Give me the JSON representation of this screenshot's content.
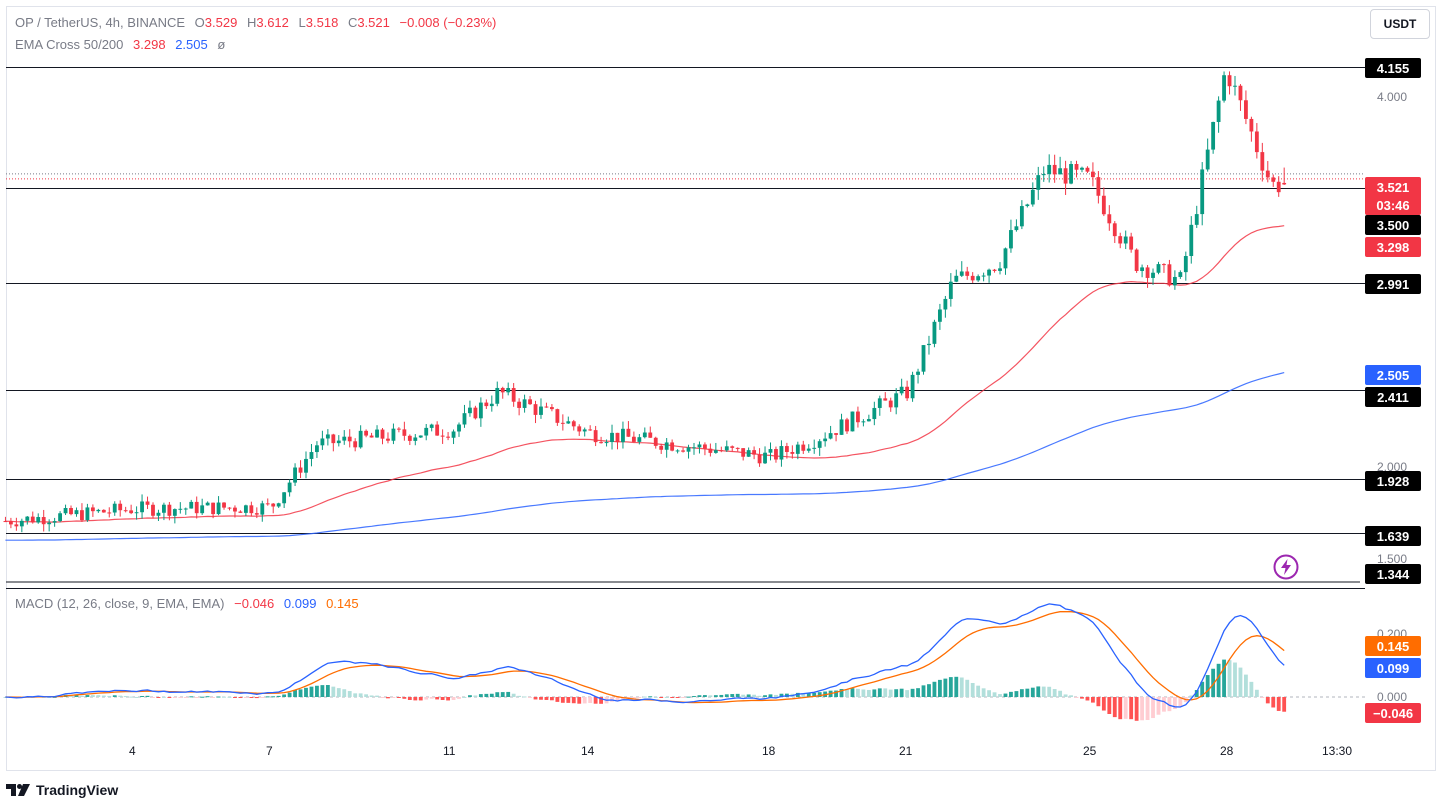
{
  "header": {
    "symbol": "OP / TetherUS, 4h, BINANCE",
    "o_label": "O",
    "o_value": "3.529",
    "h_label": "H",
    "h_value": "3.612",
    "l_label": "L",
    "l_value": "3.518",
    "c_label": "C",
    "c_value": "3.521",
    "change": "−0.008 (−0.23%)",
    "ema_label": "EMA Cross 50/200",
    "ema_fast": "3.298",
    "ema_slow": "2.505",
    "ema_icon": "ø"
  },
  "currency_button": "USDT",
  "macd": {
    "label": "MACD (12, 26, close, 9, EMA, EMA)",
    "hist": "−0.046",
    "macd": "0.099",
    "signal": "0.145"
  },
  "price_axis": {
    "ticks": [
      "4.000",
      "2.000",
      "1.500"
    ],
    "tags": [
      {
        "text": "4.155",
        "color": "#000000"
      },
      {
        "text": "3.521",
        "color": "#f23645"
      },
      {
        "text": "03:46",
        "color": "#f23645"
      },
      {
        "text": "3.500",
        "color": "#000000"
      },
      {
        "text": "3.298",
        "color": "#f23645"
      },
      {
        "text": "2.991",
        "color": "#000000"
      },
      {
        "text": "2.505",
        "color": "#2962ff"
      },
      {
        "text": "2.411",
        "color": "#000000"
      },
      {
        "text": "1.928",
        "color": "#000000"
      },
      {
        "text": "1.639",
        "color": "#000000"
      },
      {
        "text": "1.344",
        "color": "#000000"
      }
    ]
  },
  "macd_axis": {
    "ticks": [
      "0.200",
      "0.000"
    ],
    "tags": [
      {
        "text": "0.145",
        "color": "#ff6d00"
      },
      {
        "text": "0.099",
        "color": "#2962ff"
      },
      {
        "text": "−0.046",
        "color": "#f23645"
      }
    ]
  },
  "time_axis": [
    "4",
    "7",
    "11",
    "14",
    "18",
    "21",
    "25",
    "28",
    "13:30"
  ],
  "branding": "TradingView",
  "chart_data": {
    "type": "candlestick",
    "title": "OP / TetherUS, 4h, BINANCE",
    "horizontal_levels": [
      4.155,
      3.5,
      2.991,
      2.411,
      1.928,
      1.639,
      1.344
    ],
    "last_price": 3.521,
    "ylim": [
      1.344,
      4.35
    ],
    "keypoints_close": [
      {
        "x": "1",
        "close": 1.7
      },
      {
        "x": "4",
        "close": 1.77
      },
      {
        "x": "7",
        "close": 1.78
      },
      {
        "x": "8",
        "close": 2.12
      },
      {
        "x": "11",
        "close": 2.2
      },
      {
        "x": "12",
        "close": 2.4
      },
      {
        "x": "14",
        "close": 2.18
      },
      {
        "x": "18",
        "close": 2.05
      },
      {
        "x": "19",
        "close": 2.15
      },
      {
        "x": "21",
        "close": 2.4
      },
      {
        "x": "22",
        "close": 3.0
      },
      {
        "x": "23",
        "close": 3.1
      },
      {
        "x": "24",
        "close": 3.6
      },
      {
        "x": "25",
        "close": 3.55
      },
      {
        "x": "26",
        "close": 3.1
      },
      {
        "x": "27",
        "close": 3.0
      },
      {
        "x": "28",
        "close": 4.15
      },
      {
        "x": "29",
        "close": 3.52
      }
    ],
    "series": [
      {
        "name": "EMA 50",
        "color": "#f23645",
        "last": 3.298
      },
      {
        "name": "EMA 200",
        "color": "#2962ff",
        "last": 2.505
      }
    ],
    "macd": {
      "histogram": -0.046,
      "macd": 0.099,
      "signal": 0.145
    }
  }
}
